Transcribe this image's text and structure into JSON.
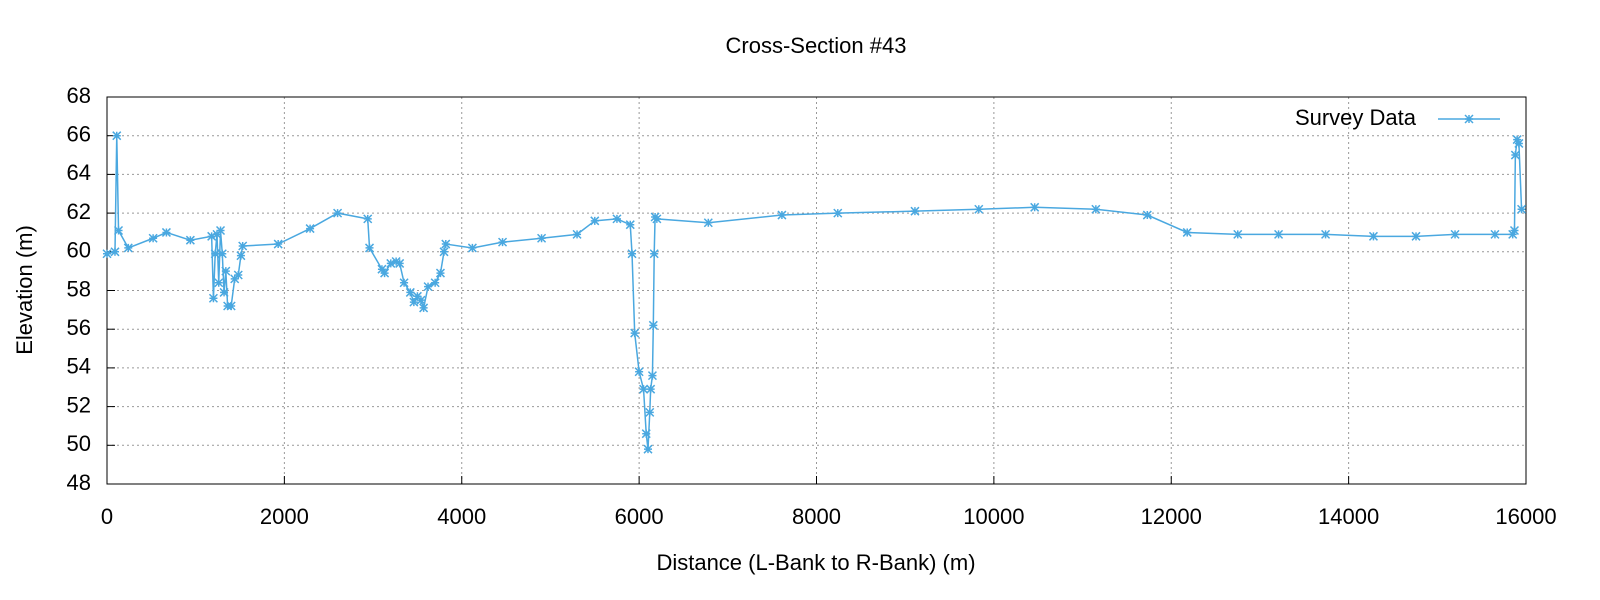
{
  "chart_data": {
    "type": "line",
    "title": "Cross-Section #43",
    "x_label": "Distance (L-Bank to R-Bank) (m)",
    "y_label": "Elevation (m)",
    "xlim": [
      0,
      16000
    ],
    "xticks": [
      0,
      2000,
      4000,
      6000,
      8000,
      10000,
      12000,
      14000,
      16000
    ],
    "ylim": [
      48,
      68
    ],
    "yticks": [
      48,
      50,
      52,
      54,
      56,
      58,
      60,
      62,
      64,
      66,
      68
    ],
    "grid": true,
    "legend": "top-right",
    "series": [
      {
        "name": "Survey Data",
        "color": "#4aa8e0",
        "x": [
          0,
          90,
          110,
          130,
          240,
          520,
          670,
          940,
          1180,
          1200,
          1220,
          1240,
          1260,
          1280,
          1300,
          1320,
          1340,
          1360,
          1400,
          1440,
          1480,
          1510,
          1530,
          1930,
          2290,
          2600,
          2940,
          2960,
          3100,
          3130,
          3200,
          3260,
          3300,
          3350,
          3420,
          3460,
          3500,
          3540,
          3570,
          3620,
          3700,
          3760,
          3800,
          3820,
          4120,
          4460,
          4900,
          5300,
          5500,
          5750,
          5900,
          5920,
          5950,
          6000,
          6050,
          6080,
          6100,
          6120,
          6130,
          6150,
          6160,
          6170,
          6180,
          6200,
          6780,
          7610,
          8240,
          9110,
          9830,
          10460,
          11150,
          11730,
          12180,
          12750,
          13210,
          13740,
          14280,
          14760,
          15200,
          15650,
          15850,
          15870,
          15880,
          15900,
          15920,
          15950
        ],
        "values": [
          59.9,
          60.0,
          66.0,
          61.1,
          60.2,
          60.7,
          61.0,
          60.6,
          60.8,
          57.6,
          59.9,
          60.9,
          58.4,
          61.1,
          59.9,
          57.9,
          59.0,
          57.2,
          57.2,
          58.6,
          58.8,
          59.8,
          60.3,
          60.4,
          61.2,
          62.0,
          61.7,
          60.2,
          59.1,
          58.9,
          59.4,
          59.5,
          59.4,
          58.4,
          57.9,
          57.4,
          57.7,
          57.5,
          57.1,
          58.2,
          58.4,
          58.9,
          60.0,
          60.4,
          60.2,
          60.5,
          60.7,
          60.9,
          61.6,
          61.7,
          61.4,
          59.9,
          55.8,
          53.8,
          52.9,
          50.6,
          49.8,
          51.7,
          52.9,
          53.6,
          56.2,
          59.9,
          61.8,
          61.7,
          61.5,
          61.9,
          62.0,
          62.1,
          62.2,
          62.3,
          62.2,
          61.9,
          61.0,
          60.9,
          60.9,
          60.9,
          60.8,
          60.8,
          60.9,
          60.9,
          60.9,
          61.1,
          65.0,
          65.8,
          65.6,
          62.2
        ]
      }
    ]
  }
}
